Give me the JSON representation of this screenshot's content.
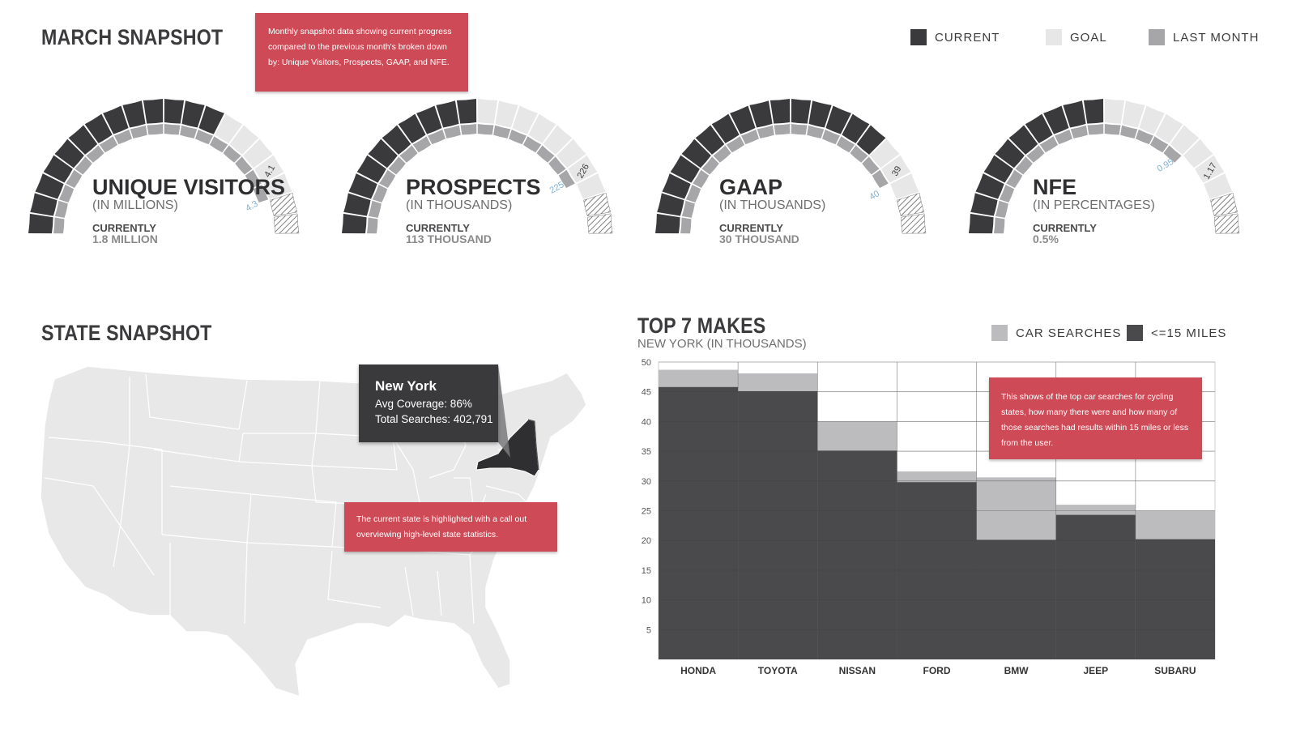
{
  "header": {
    "title": "MARCH SNAPSHOT",
    "callout": "Monthly snapshot data showing current progress compared to the previous month's broken down by: Unique Visitors, Prospects, GAAP, and NFE."
  },
  "legend": [
    {
      "label": "CURRENT",
      "color": "#3a3a3c"
    },
    {
      "label": "GOAL",
      "color": "#e7e7e8"
    },
    {
      "label": "LAST MONTH",
      "color": "#a6a6a8"
    }
  ],
  "gauges": [
    {
      "title": "UNIQUE VISITORS",
      "unit": "(IN MILLIONS)",
      "currently_label": "CURRENTLY",
      "currently_value": "1.8 MILLION",
      "goal_label": "4.1",
      "last_month_label": "4.3",
      "current_fraction": 0.64,
      "last_month_fraction": 0.9
    },
    {
      "title": "PROSPECTS",
      "unit": "(IN THOUSANDS)",
      "currently_label": "CURRENTLY",
      "currently_value": "113 THOUSAND",
      "goal_label": "226",
      "last_month_label": "225",
      "current_fraction": 0.5,
      "last_month_fraction": 0.83
    },
    {
      "title": "GAAP",
      "unit": "(IN THOUSANDS)",
      "currently_label": "CURRENTLY",
      "currently_value": "30 THOUSAND",
      "goal_label": "39",
      "last_month_label": "40",
      "current_fraction": 0.76,
      "last_month_fraction": 0.86
    },
    {
      "title": "NFE",
      "unit": "(IN PERCENTAGES)",
      "currently_label": "CURRENTLY",
      "currently_value": "0.5%",
      "goal_label": "1.17",
      "last_month_label": "0.95",
      "current_fraction": 0.5,
      "last_month_fraction": 0.73
    }
  ],
  "state": {
    "title": "STATE SNAPSHOT",
    "popup": {
      "name": "New York",
      "coverage": "Avg Coverage: 86%",
      "searches": "Total Searches: 402,791"
    },
    "callout": "The current state is highlighted with a call out overviewing high-level state statistics."
  },
  "makes": {
    "title": "TOP 7 MAKES",
    "subtitle": "NEW YORK (IN THOUSANDS)",
    "legend": [
      {
        "label": "CAR SEARCHES",
        "color": "#bcbcbe"
      },
      {
        "label": "<=15 MILES",
        "color": "#4a4a4c"
      }
    ],
    "callout": "This shows of the top car searches for cycling states, how many there were and how many of those searches had results within 15 miles or less from the user."
  },
  "chart_data": {
    "type": "bar",
    "title": "TOP 7 MAKES",
    "subtitle": "NEW YORK (IN THOUSANDS)",
    "categories": [
      "HONDA",
      "TOYOTA",
      "NISSAN",
      "FORD",
      "BMW",
      "JEEP",
      "SUBARU"
    ],
    "series": [
      {
        "name": "CAR SEARCHES",
        "values": [
          48.7,
          48.1,
          40.0,
          31.6,
          30.6,
          26.0,
          25.0
        ],
        "color": "#bcbcbe"
      },
      {
        "name": "<=15 MILES",
        "values": [
          45.8,
          45.1,
          35.1,
          29.8,
          20.1,
          24.3,
          20.2
        ],
        "color": "#4a4a4c"
      }
    ],
    "ylim": [
      0,
      50
    ],
    "yticks": [
      5,
      10,
      15,
      20,
      25,
      30,
      35,
      40,
      45,
      50
    ],
    "grid": true
  }
}
